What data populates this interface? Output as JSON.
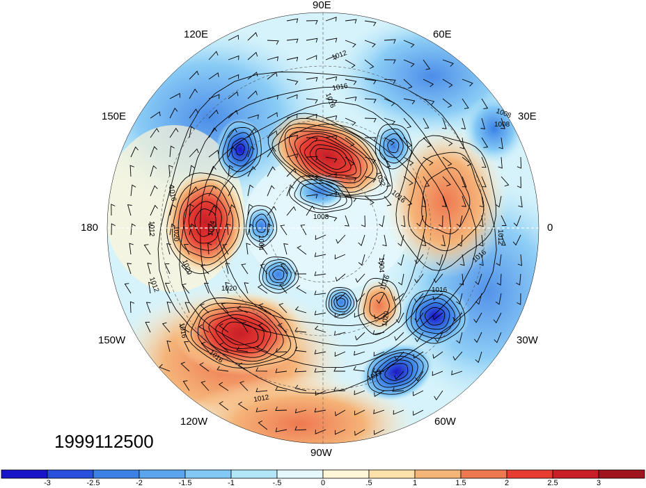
{
  "map": {
    "projection": "north polar stereographic",
    "longitude_labels": [
      "90E",
      "60E",
      "30E",
      "0",
      "30W",
      "60W",
      "90W",
      "120W",
      "150W",
      "180",
      "150E",
      "120E"
    ],
    "isobar_labels": [
      "1012",
      "1016",
      "1008",
      "1016",
      "1032",
      "1008",
      "1020",
      "1024",
      "1012",
      "1016",
      "1020",
      "1004",
      "1008",
      "1020",
      "1012",
      "1016",
      "1016",
      "1016",
      "1016",
      "1004",
      "1016",
      "1020",
      "1012",
      "1016",
      "1012",
      "1012"
    ],
    "date": "1999112500"
  },
  "colorbar": {
    "tick_labels": [
      "-3",
      "-2.5",
      "-2",
      "-1.5",
      "-1",
      "-.5",
      "0",
      ".5",
      "1",
      "1.5",
      "2",
      "2.5",
      "3"
    ],
    "colors": [
      "#1a14c8",
      "#2850dc",
      "#3c82e6",
      "#5aa5ee",
      "#82c8f5",
      "#b4e6fa",
      "#e6f8fc",
      "#fff5d7",
      "#fce1aa",
      "#f5b478",
      "#ee7850",
      "#e63c32",
      "#c81e28",
      "#a0141e"
    ]
  }
}
